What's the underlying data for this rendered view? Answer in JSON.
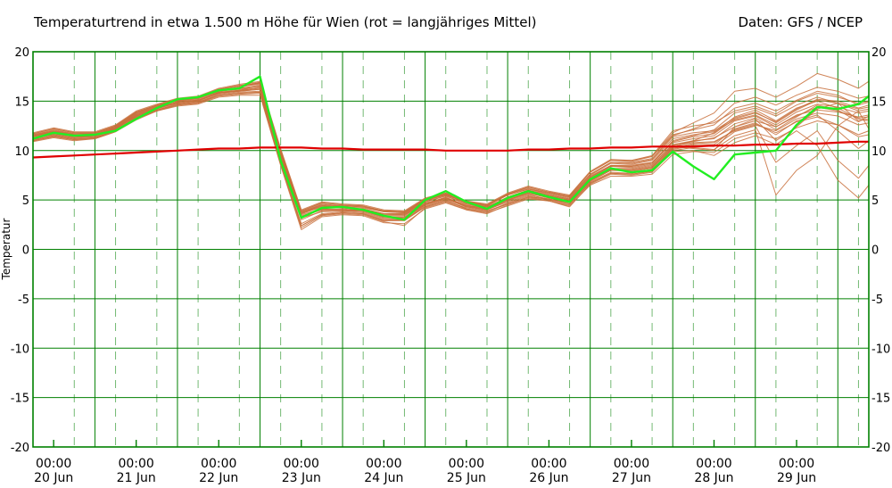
{
  "header": {
    "title": "Temperaturtrend in etwa 1.500 m Höhe für Wien (rot = langjähriges Mittel)",
    "source": "Daten: GFS / NCEP"
  },
  "colors": {
    "grid": "#008000",
    "mean": "#e00000",
    "main_run": "#22ee22",
    "ensemble": "#c8703c"
  },
  "chart_data": {
    "type": "line",
    "ylabel": "Temperatur",
    "ylim": [
      -20,
      20
    ],
    "yticks": [
      20,
      15,
      10,
      5,
      0,
      -5,
      -10,
      -15,
      -20
    ],
    "x_unit": "hours since 20 Jun 00:00",
    "xlim": [
      -6,
      237
    ],
    "xticks": [
      {
        "time": "00:00",
        "date": "20 Jun"
      },
      {
        "time": "00:00",
        "date": "21 Jun"
      },
      {
        "time": "00:00",
        "date": "22 Jun"
      },
      {
        "time": "00:00",
        "date": "23 Jun"
      },
      {
        "time": "00:00",
        "date": "24 Jun"
      },
      {
        "time": "00:00",
        "date": "25 Jun"
      },
      {
        "time": "00:00",
        "date": "26 Jun"
      },
      {
        "time": "00:00",
        "date": "27 Jun"
      },
      {
        "time": "00:00",
        "date": "28 Jun"
      },
      {
        "time": "00:00",
        "date": "29 Jun"
      }
    ],
    "x": [
      -6,
      0,
      6,
      12,
      18,
      24,
      30,
      36,
      42,
      48,
      54,
      60,
      66,
      72,
      78,
      84,
      90,
      96,
      102,
      108,
      114,
      120,
      126,
      132,
      138,
      144,
      150,
      156,
      162,
      168,
      174,
      180,
      186,
      192,
      198,
      204,
      210,
      216,
      222,
      228,
      234,
      237
    ],
    "series": [
      {
        "role": "mean",
        "values": [
          9.3,
          9.4,
          9.5,
          9.6,
          9.7,
          9.8,
          9.9,
          10.0,
          10.1,
          10.2,
          10.2,
          10.3,
          10.3,
          10.3,
          10.2,
          10.2,
          10.1,
          10.1,
          10.1,
          10.1,
          10.0,
          10.0,
          10.0,
          10.0,
          10.1,
          10.1,
          10.2,
          10.2,
          10.3,
          10.3,
          10.4,
          10.4,
          10.4,
          10.5,
          10.5,
          10.6,
          10.6,
          10.7,
          10.7,
          10.8,
          10.9,
          10.9
        ]
      },
      {
        "role": "main",
        "values": [
          11.2,
          11.8,
          11.5,
          11.6,
          12.0,
          13.2,
          14.3,
          15.2,
          15.4,
          16.1,
          16.3,
          17.5,
          9.0,
          3.2,
          4.2,
          4.3,
          4.0,
          3.4,
          3.0,
          5.0,
          5.9,
          4.8,
          4.1,
          5.2,
          5.9,
          5.3,
          4.8,
          7.1,
          8.2,
          7.8,
          8.0,
          9.9,
          8.4,
          7.1,
          9.6,
          9.8,
          10.0,
          12.6,
          14.4,
          14.2,
          14.7,
          15.5
        ]
      },
      {
        "role": "ensemble",
        "values": [
          11.5,
          11.9,
          11.6,
          11.5,
          12.2,
          13.6,
          14.4,
          14.9,
          15.1,
          15.8,
          16.1,
          16.6,
          9.5,
          3.5,
          4.1,
          4.0,
          4.0,
          3.6,
          3.5,
          4.6,
          5.3,
          4.4,
          4.3,
          5.1,
          5.8,
          5.4,
          5.0,
          7.3,
          8.4,
          8.3,
          8.6,
          10.6,
          10.9,
          11.3,
          12.4,
          13.0,
          12.4,
          13.6,
          14.1,
          13.9,
          13.4,
          13.6
        ]
      },
      {
        "role": "ensemble",
        "values": [
          11.0,
          11.4,
          11.1,
          11.3,
          12.0,
          13.4,
          14.1,
          14.6,
          14.8,
          15.6,
          15.8,
          15.9,
          8.8,
          2.4,
          3.5,
          3.7,
          3.6,
          2.9,
          3.0,
          4.3,
          4.9,
          4.2,
          3.9,
          4.6,
          5.3,
          5.1,
          4.6,
          6.7,
          7.7,
          7.6,
          7.9,
          10.3,
          11.0,
          11.8,
          13.4,
          14.1,
          13.0,
          14.3,
          15.0,
          14.3,
          13.2,
          13.0
        ]
      },
      {
        "role": "ensemble",
        "values": [
          11.7,
          12.2,
          11.8,
          11.8,
          12.5,
          13.9,
          14.6,
          15.2,
          15.4,
          16.2,
          16.6,
          16.8,
          10.0,
          3.8,
          4.6,
          4.4,
          4.3,
          3.9,
          3.8,
          5.0,
          5.5,
          4.8,
          4.4,
          5.6,
          6.2,
          5.7,
          5.3,
          7.6,
          8.8,
          8.7,
          9.1,
          11.4,
          11.8,
          12.0,
          13.3,
          13.9,
          12.8,
          14.1,
          15.1,
          14.8,
          14.2,
          14.4
        ]
      },
      {
        "role": "ensemble",
        "values": [
          11.2,
          11.7,
          11.4,
          11.4,
          12.1,
          13.3,
          14.3,
          14.8,
          15.0,
          15.9,
          16.0,
          16.2,
          9.1,
          3.2,
          3.8,
          3.9,
          3.9,
          3.2,
          3.2,
          4.5,
          5.1,
          4.3,
          4.0,
          4.9,
          5.6,
          5.0,
          4.8,
          6.9,
          8.0,
          8.0,
          8.3,
          10.5,
          10.8,
          10.9,
          12.0,
          12.6,
          12.0,
          13.2,
          13.8,
          13.5,
          12.6,
          12.8
        ]
      },
      {
        "role": "ensemble",
        "values": [
          11.4,
          11.8,
          11.5,
          11.6,
          12.3,
          13.7,
          14.5,
          15.0,
          15.2,
          16.0,
          16.3,
          16.5,
          9.6,
          3.6,
          4.3,
          4.2,
          4.1,
          3.6,
          3.6,
          4.8,
          5.4,
          4.6,
          4.2,
          5.3,
          6.0,
          5.5,
          5.1,
          7.4,
          8.5,
          8.5,
          8.8,
          11.0,
          11.5,
          12.1,
          13.8,
          14.3,
          13.5,
          14.6,
          15.4,
          14.8,
          14.0,
          14.2
        ]
      },
      {
        "role": "ensemble",
        "values": [
          10.9,
          11.3,
          11.0,
          11.2,
          11.9,
          13.2,
          14.0,
          14.5,
          14.7,
          15.4,
          15.6,
          15.6,
          8.5,
          2.0,
          3.3,
          3.5,
          3.4,
          2.7,
          2.6,
          4.1,
          4.7,
          4.0,
          3.7,
          4.4,
          5.1,
          4.9,
          4.4,
          6.5,
          7.4,
          7.4,
          7.6,
          9.6,
          9.9,
          9.8,
          11.2,
          11.8,
          11.2,
          12.3,
          13.0,
          12.6,
          11.4,
          11.6
        ]
      },
      {
        "role": "ensemble",
        "values": [
          11.6,
          12.0,
          11.7,
          11.7,
          12.4,
          13.8,
          14.5,
          15.1,
          15.3,
          16.1,
          16.4,
          16.9,
          9.8,
          3.7,
          4.5,
          4.3,
          4.2,
          3.8,
          3.7,
          4.9,
          5.6,
          4.7,
          4.4,
          5.5,
          6.1,
          5.6,
          5.2,
          7.5,
          8.7,
          8.6,
          9.0,
          11.2,
          11.6,
          11.9,
          13.1,
          13.6,
          12.6,
          13.9,
          14.7,
          14.4,
          13.8,
          14.0
        ]
      },
      {
        "role": "ensemble",
        "values": [
          11.3,
          11.6,
          11.3,
          11.5,
          12.2,
          13.5,
          14.2,
          14.9,
          15.1,
          15.8,
          16.0,
          16.4,
          9.3,
          3.4,
          4.0,
          4.1,
          3.9,
          3.4,
          3.4,
          4.7,
          5.2,
          4.5,
          4.1,
          5.0,
          5.7,
          5.2,
          4.9,
          7.0,
          8.1,
          8.1,
          8.4,
          10.4,
          10.2,
          10.0,
          12.4,
          13.2,
          11.0,
          12.4,
          14.2,
          14.8,
          13.0,
          13.2
        ]
      },
      {
        "role": "ensemble",
        "values": [
          11.8,
          12.3,
          11.9,
          11.9,
          12.6,
          14.0,
          14.7,
          15.3,
          15.5,
          16.3,
          16.7,
          17.0,
          10.2,
          4.0,
          4.8,
          4.6,
          4.5,
          4.0,
          3.9,
          5.2,
          5.7,
          4.9,
          4.6,
          5.7,
          6.4,
          5.9,
          5.5,
          7.9,
          9.1,
          9.0,
          9.5,
          12.0,
          12.5,
          12.8,
          14.0,
          14.5,
          13.7,
          15.0,
          15.8,
          15.4,
          14.8,
          15.0
        ]
      },
      {
        "role": "ensemble",
        "values": [
          11.1,
          11.5,
          11.2,
          11.3,
          12.0,
          13.3,
          14.1,
          14.7,
          14.9,
          15.7,
          15.9,
          16.0,
          8.9,
          2.6,
          3.6,
          3.8,
          3.7,
          3.0,
          3.0,
          4.4,
          5.0,
          4.1,
          3.8,
          4.7,
          5.4,
          5.0,
          4.6,
          6.8,
          7.8,
          7.7,
          8.1,
          10.1,
          10.5,
          10.4,
          11.9,
          12.5,
          8.8,
          10.5,
          12.0,
          9.0,
          7.2,
          8.5
        ]
      },
      {
        "role": "ensemble",
        "values": [
          11.4,
          11.9,
          11.6,
          11.6,
          12.3,
          13.6,
          14.4,
          15.1,
          15.3,
          16.0,
          16.2,
          16.6,
          9.7,
          3.7,
          4.4,
          4.2,
          4.0,
          3.5,
          3.5,
          4.8,
          5.4,
          4.6,
          4.3,
          5.2,
          5.9,
          5.4,
          5.0,
          7.2,
          8.4,
          8.4,
          8.7,
          10.8,
          11.2,
          11.5,
          13.0,
          13.5,
          12.4,
          13.5,
          14.4,
          14.0,
          13.3,
          13.4
        ]
      },
      {
        "role": "ensemble",
        "values": [
          11.5,
          12.0,
          11.6,
          11.7,
          12.4,
          13.8,
          14.6,
          15.0,
          15.3,
          16.1,
          16.4,
          16.8,
          9.9,
          3.9,
          4.7,
          4.5,
          4.4,
          3.9,
          3.8,
          5.1,
          5.7,
          4.9,
          4.5,
          5.6,
          6.3,
          5.8,
          5.4,
          7.8,
          9.0,
          8.9,
          9.4,
          11.6,
          12.1,
          12.6,
          14.3,
          14.8,
          14.0,
          15.1,
          16.0,
          15.6,
          14.6,
          14.9
        ]
      },
      {
        "role": "ensemble",
        "values": [
          11.0,
          11.4,
          11.1,
          11.2,
          11.9,
          13.1,
          14.0,
          14.6,
          14.8,
          15.5,
          15.7,
          15.8,
          8.6,
          2.2,
          3.4,
          3.6,
          3.5,
          2.8,
          2.4,
          4.2,
          4.8,
          4.0,
          3.6,
          4.5,
          5.2,
          4.9,
          4.3,
          6.6,
          7.6,
          7.5,
          7.8,
          9.9,
          10.0,
          9.5,
          10.8,
          11.5,
          10.6,
          12.0,
          10.5,
          7.0,
          5.2,
          6.5
        ]
      },
      {
        "role": "ensemble",
        "values": [
          11.3,
          11.7,
          11.4,
          11.5,
          12.2,
          13.5,
          14.3,
          14.9,
          15.1,
          15.9,
          16.1,
          16.3,
          9.4,
          3.3,
          4.1,
          4.0,
          3.9,
          3.3,
          3.3,
          4.6,
          5.2,
          4.4,
          4.1,
          5.0,
          5.7,
          5.3,
          4.9,
          7.0,
          8.2,
          8.2,
          8.5,
          10.6,
          11.0,
          11.2,
          12.7,
          13.3,
          12.1,
          13.4,
          14.6,
          14.1,
          12.9,
          13.5
        ]
      },
      {
        "role": "ensemble",
        "values": [
          11.6,
          12.1,
          11.7,
          11.8,
          12.5,
          13.9,
          14.6,
          15.2,
          15.4,
          16.2,
          16.5,
          16.7,
          10.0,
          3.8,
          4.5,
          4.4,
          4.3,
          3.8,
          3.7,
          5.0,
          5.6,
          4.8,
          4.4,
          5.5,
          6.1,
          5.7,
          5.3,
          7.6,
          8.8,
          8.8,
          9.2,
          11.5,
          12.2,
          13.0,
          14.8,
          15.4,
          14.6,
          15.6,
          16.4,
          16.0,
          15.3,
          15.5
        ]
      },
      {
        "role": "ensemble",
        "values": [
          11.2,
          11.6,
          11.3,
          11.4,
          12.1,
          13.4,
          14.2,
          14.8,
          15.0,
          15.8,
          16.0,
          16.2,
          9.2,
          3.0,
          3.9,
          3.9,
          3.8,
          3.1,
          3.1,
          4.5,
          5.1,
          4.3,
          4.0,
          4.8,
          5.5,
          5.1,
          4.7,
          6.9,
          8.0,
          7.9,
          8.2,
          10.2,
          10.6,
          10.6,
          12.2,
          12.8,
          11.6,
          13.0,
          13.6,
          12.0,
          10.2,
          11.0
        ]
      },
      {
        "role": "ensemble",
        "values": [
          11.5,
          11.9,
          11.6,
          11.6,
          12.3,
          13.7,
          14.4,
          15.1,
          15.3,
          16.0,
          16.3,
          16.6,
          9.7,
          3.6,
          4.4,
          4.2,
          4.1,
          3.6,
          3.6,
          4.9,
          5.5,
          4.7,
          4.3,
          5.3,
          6.0,
          5.5,
          5.1,
          7.3,
          8.5,
          8.4,
          8.8,
          10.9,
          11.4,
          11.7,
          13.2,
          13.8,
          12.9,
          14.2,
          15.2,
          15.0,
          14.3,
          14.6
        ]
      },
      {
        "role": "ensemble",
        "values": [
          11.1,
          11.5,
          11.2,
          11.3,
          12.0,
          13.2,
          14.1,
          14.7,
          14.9,
          15.6,
          15.8,
          15.9,
          8.7,
          2.4,
          3.5,
          3.7,
          3.6,
          2.9,
          2.9,
          4.3,
          4.9,
          4.1,
          3.8,
          4.6,
          5.3,
          4.9,
          4.5,
          6.7,
          7.7,
          7.6,
          7.9,
          10.0,
          10.3,
          10.1,
          11.5,
          12.1,
          5.5,
          8.0,
          9.5,
          12.5,
          14.0,
          12.2
        ]
      },
      {
        "role": "ensemble",
        "values": [
          11.7,
          12.2,
          11.8,
          11.8,
          12.5,
          13.9,
          14.6,
          15.2,
          15.4,
          16.2,
          16.6,
          16.9,
          10.1,
          3.9,
          4.7,
          4.5,
          4.4,
          3.9,
          3.8,
          5.1,
          5.6,
          4.8,
          4.5,
          5.6,
          6.3,
          5.8,
          5.4,
          7.8,
          9.0,
          9.0,
          9.4,
          11.8,
          12.8,
          13.8,
          16.0,
          16.3,
          15.4,
          16.5,
          17.8,
          17.2,
          16.3,
          17.0
        ]
      },
      {
        "role": "ensemble",
        "values": [
          11.3,
          11.8,
          11.5,
          11.5,
          12.2,
          13.5,
          14.3,
          14.9,
          15.1,
          15.9,
          16.1,
          16.4,
          9.3,
          3.3,
          4.0,
          4.0,
          3.9,
          3.3,
          3.2,
          4.6,
          5.2,
          4.4,
          4.0,
          5.0,
          5.7,
          5.2,
          4.8,
          7.0,
          8.1,
          8.0,
          8.3,
          10.3,
          10.7,
          10.8,
          12.1,
          12.7,
          11.8,
          12.9,
          13.4,
          12.6,
          11.6,
          12.0
        ]
      }
    ]
  }
}
